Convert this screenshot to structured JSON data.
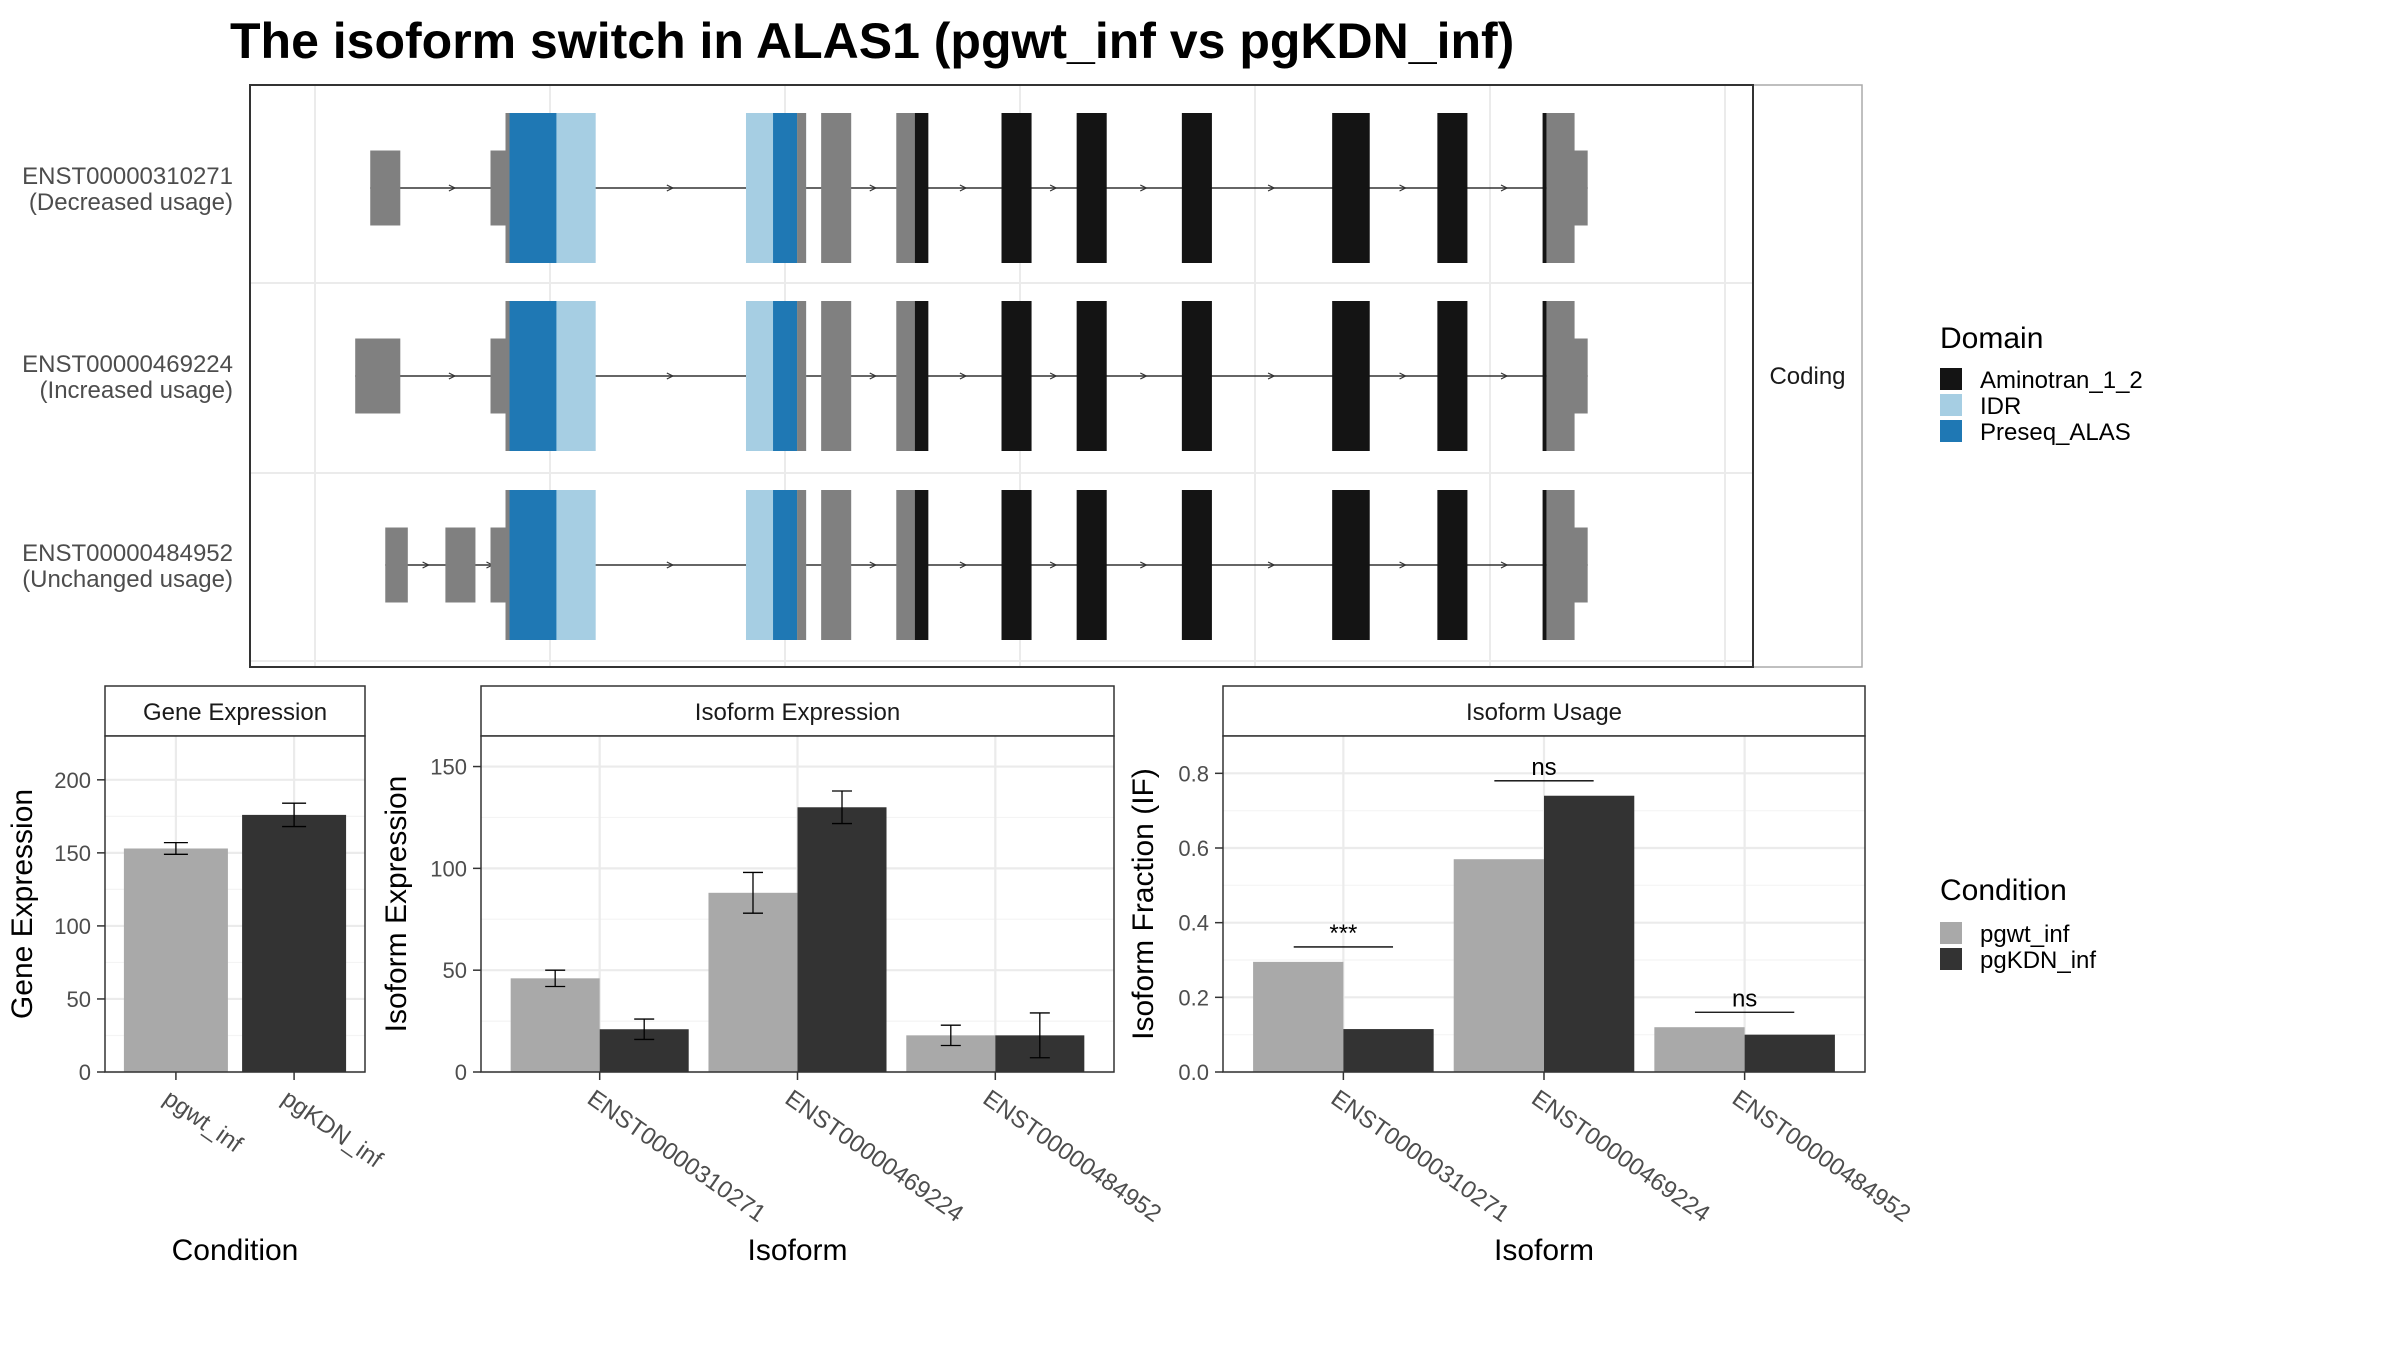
{
  "title": "The isoform switch in ALAS1 (pgwt_inf vs pgKDN_inf)",
  "colors": {
    "utr": "#808080",
    "Aminotran_1_2": "#141414",
    "IDR": "#a6cee3",
    "Preseq_ALAS": "#1f78b4",
    "pgwt_inf": "#a9a9a9",
    "pgKDN_inf": "#333333"
  },
  "chart_data": [
    {
      "type": "gene-structure",
      "strip_label": "Coding",
      "legend": {
        "title": "Domain",
        "items": [
          "Aminotran_1_2",
          "IDR",
          "Preseq_ALAS"
        ]
      },
      "isoforms": [
        {
          "id": "ENST00000310271",
          "usage": "(Decreased usage)",
          "utr5_exons": [
            [
              0.08,
              0.1
            ]
          ],
          "cds_exons": [
            [
              0.17,
              0.23
            ],
            [
              0.33,
              0.37
            ],
            [
              0.38,
              0.4
            ],
            [
              0.43,
              0.45
            ],
            [
              0.5,
              0.52
            ],
            [
              0.55,
              0.57
            ],
            [
              0.62,
              0.64
            ],
            [
              0.72,
              0.745
            ],
            [
              0.79,
              0.81
            ]
          ],
          "utr3_exon": [
            0.86,
            0.89
          ]
        },
        {
          "id": "ENST00000469224",
          "usage": "(Increased usage)",
          "utr5_exons": [
            [
              0.07,
              0.1
            ]
          ],
          "cds_exons": [
            [
              0.17,
              0.23
            ],
            [
              0.33,
              0.37
            ],
            [
              0.38,
              0.4
            ],
            [
              0.43,
              0.45
            ],
            [
              0.5,
              0.52
            ],
            [
              0.55,
              0.57
            ],
            [
              0.62,
              0.64
            ],
            [
              0.72,
              0.745
            ],
            [
              0.79,
              0.81
            ]
          ],
          "utr3_exon": [
            0.86,
            0.89
          ]
        },
        {
          "id": "ENST00000484952",
          "usage": "(Unchanged usage)",
          "utr5_exons": [
            [
              0.09,
              0.105
            ],
            [
              0.13,
              0.15
            ]
          ],
          "cds_exons": [
            [
              0.17,
              0.23
            ],
            [
              0.33,
              0.37
            ],
            [
              0.38,
              0.4
            ],
            [
              0.43,
              0.45
            ],
            [
              0.5,
              0.52
            ],
            [
              0.55,
              0.57
            ],
            [
              0.62,
              0.64
            ],
            [
              0.72,
              0.745
            ],
            [
              0.79,
              0.81
            ]
          ],
          "utr3_exon": [
            0.86,
            0.89
          ]
        }
      ]
    },
    {
      "type": "bar",
      "strip_title": "Gene Expression",
      "xlabel": "Condition",
      "ylabel": "Gene Expression",
      "ylim": [
        0,
        230
      ],
      "yticks": [
        0,
        50,
        100,
        150,
        200
      ],
      "categories": [
        "pgwt_inf",
        "pgKDN_inf"
      ],
      "values": [
        153,
        176
      ],
      "errors": [
        4,
        8
      ]
    },
    {
      "type": "bar",
      "strip_title": "Isoform Expression",
      "xlabel": "Isoform",
      "ylabel": "Isoform Expression",
      "ylim": [
        0,
        165
      ],
      "yticks": [
        0,
        50,
        100,
        150
      ],
      "categories": [
        "ENST00000310271",
        "ENST00000469224",
        "ENST00000484952"
      ],
      "series": [
        {
          "name": "pgwt_inf",
          "values": [
            46,
            88,
            18
          ],
          "errors": [
            4,
            10,
            5
          ]
        },
        {
          "name": "pgKDN_inf",
          "values": [
            21,
            130,
            18
          ],
          "errors": [
            5,
            8,
            11
          ]
        }
      ]
    },
    {
      "type": "bar",
      "strip_title": "Isoform Usage",
      "xlabel": "Isoform",
      "ylabel": "Isoform Fraction (IF)",
      "ylim": [
        0,
        0.9
      ],
      "yticks": [
        "0.0",
        "0.2",
        "0.4",
        "0.6",
        "0.8"
      ],
      "categories": [
        "ENST00000310271",
        "ENST00000469224",
        "ENST00000484952"
      ],
      "series": [
        {
          "name": "pgwt_inf",
          "values": [
            0.295,
            0.57,
            0.12
          ]
        },
        {
          "name": "pgKDN_inf",
          "values": [
            0.115,
            0.74,
            0.1
          ]
        }
      ],
      "significance": [
        "***",
        "ns",
        "ns"
      ],
      "legend": {
        "title": "Condition",
        "items": [
          "pgwt_inf",
          "pgKDN_inf"
        ]
      }
    }
  ]
}
